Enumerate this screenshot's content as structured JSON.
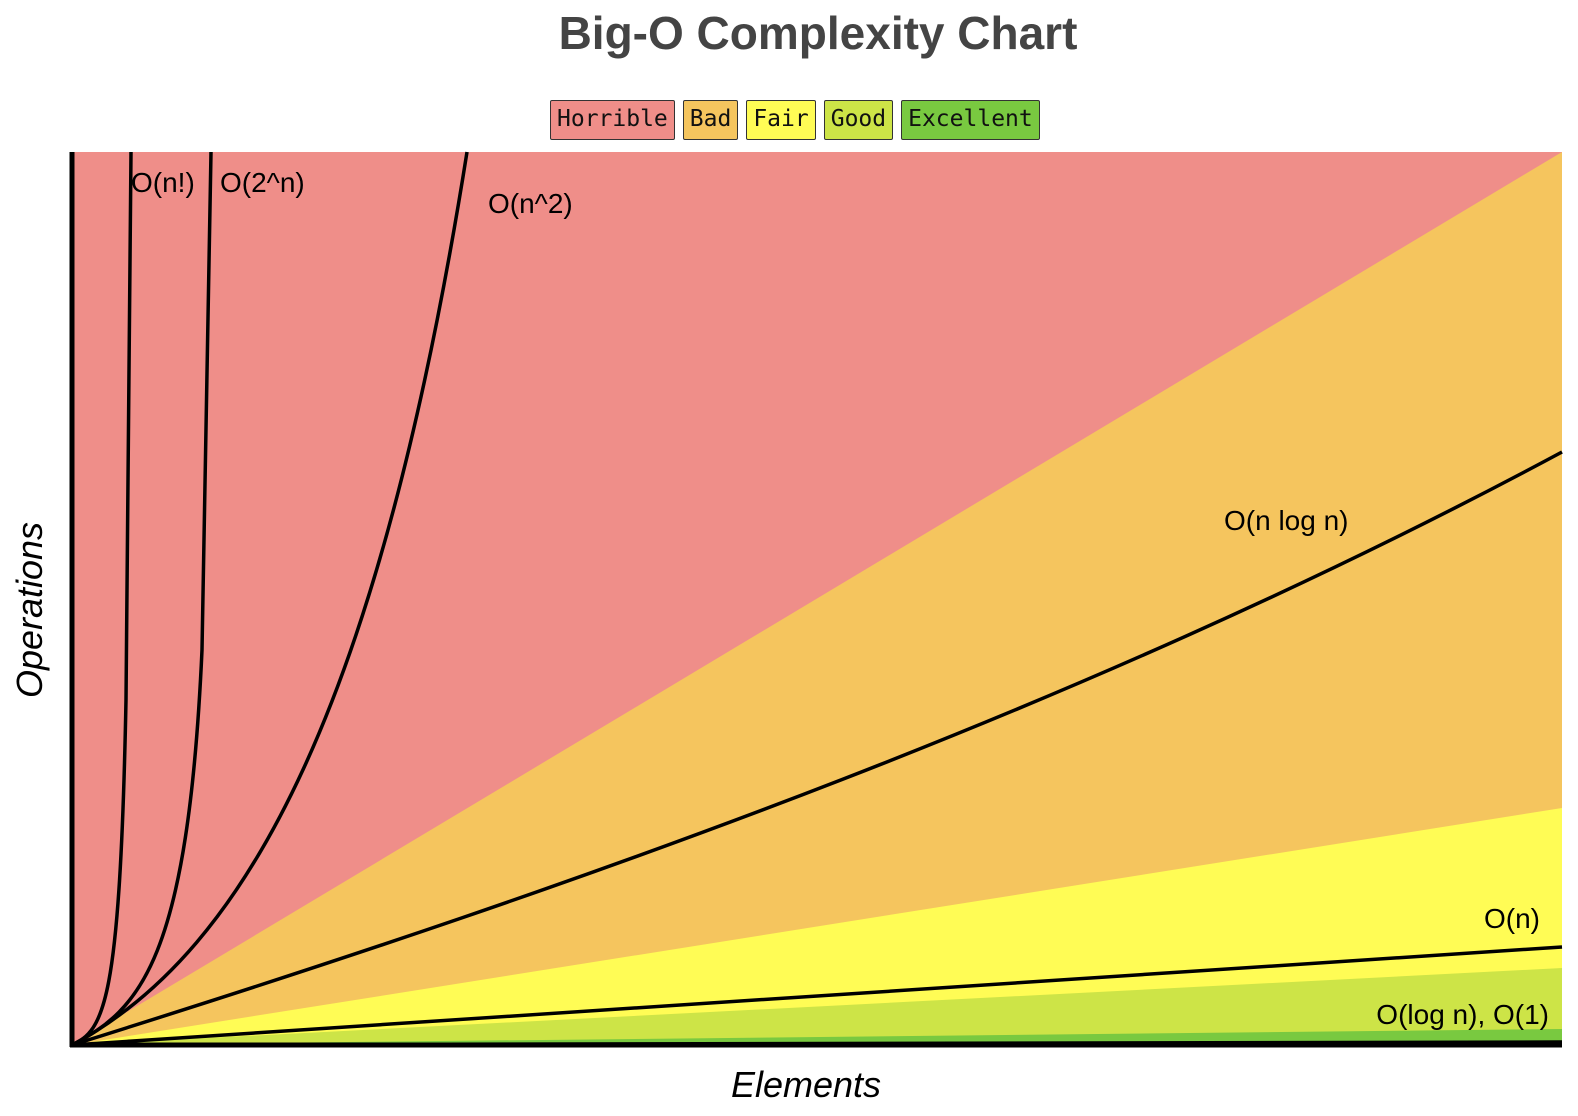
{
  "chart_data": {
    "type": "area",
    "title": "Big-O Complexity Chart",
    "xlabel": "Elements",
    "ylabel": "Operations",
    "grid": false,
    "legend_position": "top-center",
    "legend": [
      {
        "label": "Horrible",
        "color": "#EF8E89"
      },
      {
        "label": "Bad",
        "color": "#F5C55E"
      },
      {
        "label": "Fair",
        "color": "#FFFC55"
      },
      {
        "label": "Good",
        "color": "#CDE447"
      },
      {
        "label": "Excellent",
        "color": "#79C940"
      }
    ],
    "zones": [
      {
        "name": "Horrible",
        "color": "#EF8E89"
      },
      {
        "name": "Bad",
        "color": "#F5C55E"
      },
      {
        "name": "Fair",
        "color": "#FFFC55"
      },
      {
        "name": "Good",
        "color": "#CDE447"
      },
      {
        "name": "Excellent",
        "color": "#79C940"
      }
    ],
    "series": [
      {
        "name": "O(n!)"
      },
      {
        "name": "O(2^n)"
      },
      {
        "name": "O(n^2)"
      },
      {
        "name": "O(n log n)"
      },
      {
        "name": "O(n)"
      },
      {
        "name": "O(log n), O(1)"
      }
    ]
  }
}
